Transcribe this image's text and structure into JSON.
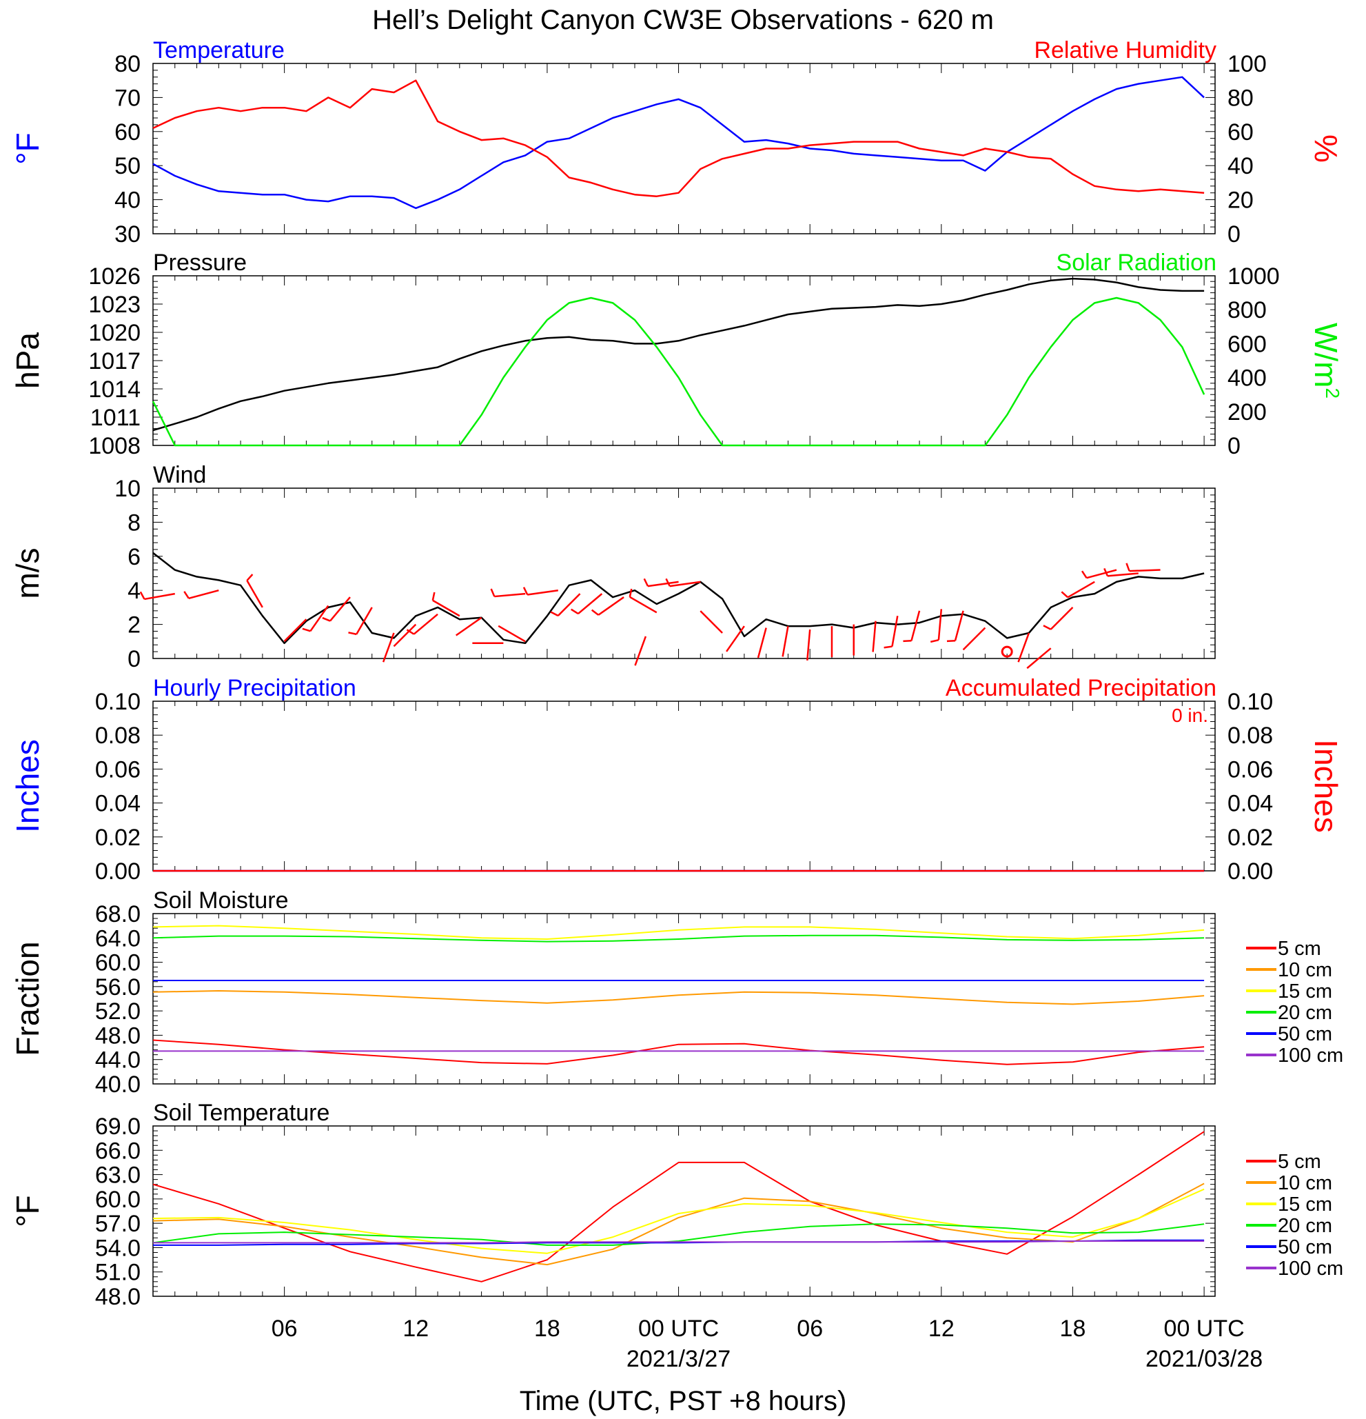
{
  "title": "Hell’s Delight Canyon CW3E Observations - 620 m",
  "x_axis": {
    "tick_labels": [
      "06",
      "12",
      "18",
      "00 UTC",
      "06",
      "12",
      "18",
      "00 UTC"
    ],
    "date_labels": [
      "2021/3/27",
      "2021/03/28"
    ],
    "title": "Time (UTC, PST +8 hours)"
  },
  "colors": {
    "temperature": "#0000ff",
    "humidity": "#ff0000",
    "pressure": "#000000",
    "solar": "#00ee00",
    "wind": "#000000",
    "barb": "#ff0000",
    "d5": "#ff0000",
    "d10": "#ff9900",
    "d15": "#ffff00",
    "d20": "#00ee00",
    "d50": "#0000ff",
    "d100": "#9933cc"
  },
  "chart_data": [
    {
      "type": "line",
      "panel": "temp_rh",
      "left_title": "Temperature",
      "right_title": "Relative Humidity",
      "ylabel": "°F",
      "ylabel_right": "%",
      "ylim": [
        30,
        80
      ],
      "ylim_right": [
        0,
        100
      ],
      "left_ticks": [
        "30",
        "40",
        "50",
        "60",
        "70",
        "80"
      ],
      "right_ticks": [
        "0",
        "20",
        "40",
        "60",
        "80",
        "100"
      ],
      "x_hours": [
        0,
        1,
        2,
        3,
        4,
        5,
        6,
        7,
        8,
        9,
        10,
        11,
        12,
        13,
        14,
        15,
        16,
        17,
        18,
        19,
        20,
        21,
        22,
        23,
        24,
        25,
        26,
        27,
        28,
        29,
        30,
        31,
        32,
        33,
        34,
        35,
        36,
        37,
        38,
        39,
        40,
        41,
        42,
        43,
        44,
        45,
        46,
        47,
        48
      ],
      "series": [
        {
          "name": "Temperature",
          "axis": "left",
          "color_key": "temperature",
          "values": [
            50.5,
            47,
            44.5,
            42.5,
            42,
            41.5,
            41.5,
            40,
            39.5,
            41,
            41,
            40.5,
            37.5,
            40,
            43,
            47,
            51,
            53,
            57,
            58,
            61,
            64,
            66,
            68,
            69.5,
            67,
            62,
            57,
            57.5,
            56.5,
            55,
            54.5,
            53.5,
            53,
            52.5,
            52,
            51.5,
            51.5,
            48.5,
            54,
            58,
            62,
            66,
            69.5,
            72.5,
            74,
            75,
            76,
            70
          ]
        },
        {
          "name": "Relative Humidity",
          "axis": "right",
          "color_key": "humidity",
          "values": [
            62,
            68,
            72,
            74,
            72,
            74,
            74,
            72,
            80,
            74,
            85,
            83,
            90,
            66,
            60,
            55,
            56,
            52,
            45,
            33,
            30,
            26,
            23,
            22,
            24,
            38,
            44,
            47,
            50,
            50,
            52,
            53,
            54,
            54,
            54,
            50,
            48,
            46,
            50,
            48,
            45,
            44,
            35,
            28,
            26,
            25,
            26,
            25,
            24
          ]
        }
      ]
    },
    {
      "type": "line",
      "panel": "pressure_solar",
      "left_title": "Pressure",
      "right_title": "Solar Radiation",
      "ylabel": "hPa",
      "ylabel_right": "W/m",
      "ylabel_right_sup": "2",
      "ylim": [
        1008,
        1026
      ],
      "ylim_right": [
        0,
        1000
      ],
      "left_ticks": [
        "1008",
        "1011",
        "1014",
        "1017",
        "1020",
        "1023",
        "1026"
      ],
      "right_ticks": [
        "0",
        "200",
        "400",
        "600",
        "800",
        "1000"
      ],
      "x_hours": [
        0,
        1,
        2,
        3,
        4,
        5,
        6,
        7,
        8,
        9,
        10,
        11,
        12,
        13,
        14,
        15,
        16,
        17,
        18,
        19,
        20,
        21,
        22,
        23,
        24,
        25,
        26,
        27,
        28,
        29,
        30,
        31,
        32,
        33,
        34,
        35,
        36,
        37,
        38,
        39,
        40,
        41,
        42,
        43,
        44,
        45,
        46,
        47,
        48
      ],
      "series": [
        {
          "name": "Pressure",
          "axis": "left",
          "color_key": "pressure",
          "values": [
            1009.6,
            1010.3,
            1011,
            1011.9,
            1012.7,
            1013.2,
            1013.8,
            1014.2,
            1014.6,
            1014.9,
            1015.2,
            1015.5,
            1015.9,
            1016.3,
            1017.2,
            1018,
            1018.6,
            1019.1,
            1019.4,
            1019.5,
            1019.2,
            1019.1,
            1018.8,
            1018.8,
            1019.1,
            1019.7,
            1020.2,
            1020.7,
            1021.3,
            1021.9,
            1022.2,
            1022.5,
            1022.6,
            1022.7,
            1022.9,
            1022.8,
            1023,
            1023.4,
            1024,
            1024.5,
            1025.1,
            1025.5,
            1025.7,
            1025.6,
            1025.3,
            1024.8,
            1024.5,
            1024.4,
            1024.4
          ]
        },
        {
          "name": "Solar Radiation",
          "axis": "right",
          "color_key": "solar",
          "values": [
            260,
            0,
            0,
            0,
            0,
            0,
            0,
            0,
            0,
            0,
            0,
            0,
            0,
            0,
            0,
            180,
            400,
            580,
            740,
            840,
            870,
            840,
            740,
            580,
            400,
            180,
            0,
            0,
            0,
            0,
            0,
            0,
            0,
            0,
            0,
            0,
            0,
            0,
            0,
            180,
            400,
            580,
            740,
            840,
            870,
            840,
            740,
            580,
            300
          ]
        }
      ]
    },
    {
      "type": "line",
      "panel": "wind",
      "left_title": "Wind",
      "ylabel": "m/s",
      "ylim": [
        0,
        10
      ],
      "left_ticks": [
        "0",
        "2",
        "4",
        "6",
        "8",
        "10"
      ],
      "x_hours": [
        0,
        1,
        2,
        3,
        4,
        5,
        6,
        7,
        8,
        9,
        10,
        11,
        12,
        13,
        14,
        15,
        16,
        17,
        18,
        19,
        20,
        21,
        22,
        23,
        24,
        25,
        26,
        27,
        28,
        29,
        30,
        31,
        32,
        33,
        34,
        35,
        36,
        37,
        38,
        39,
        40,
        41,
        42,
        43,
        44,
        45,
        46,
        47,
        48
      ],
      "series": [
        {
          "name": "Wind",
          "axis": "left",
          "color_key": "wind",
          "values": [
            6.2,
            5.2,
            4.8,
            4.6,
            4.3,
            2.5,
            0.9,
            2.2,
            3.0,
            3.3,
            1.5,
            1.2,
            2.5,
            3.0,
            2.3,
            2.4,
            1.1,
            0.9,
            2.5,
            4.3,
            4.6,
            3.6,
            4.0,
            3.2,
            3.8,
            4.5,
            3.5,
            1.3,
            2.3,
            1.9,
            1.9,
            2.0,
            1.8,
            2.1,
            2.0,
            2.1,
            2.5,
            2.6,
            2.2,
            1.2,
            1.5,
            3.0,
            3.6,
            3.8,
            4.5,
            4.8,
            4.7,
            4.7,
            5.0
          ]
        }
      ],
      "barbs": [
        {
          "hour": 1,
          "speed": 3.8,
          "dir": 260
        },
        {
          "hour": 3,
          "speed": 4.0,
          "dir": 255
        },
        {
          "hour": 5,
          "speed": 3.0,
          "dir": 330
        },
        {
          "hour": 7,
          "speed": 2.3,
          "dir": 225
        },
        {
          "hour": 8,
          "speed": 3.1,
          "dir": 215
        },
        {
          "hour": 9,
          "speed": 3.6,
          "dir": 220
        },
        {
          "hour": 10,
          "speed": 3.0,
          "dir": 210
        },
        {
          "hour": 11,
          "speed": 1.5,
          "dir": 200
        },
        {
          "hour": 12,
          "speed": 2.0,
          "dir": 225
        },
        {
          "hour": 13,
          "speed": 2.6,
          "dir": 230
        },
        {
          "hour": 14,
          "speed": 2.5,
          "dir": 300
        },
        {
          "hour": 15,
          "speed": 2.4,
          "dir": 235
        },
        {
          "hour": 16,
          "speed": 0.9,
          "dir": 270
        },
        {
          "hour": 17,
          "speed": 1.0,
          "dir": 300
        },
        {
          "hour": 17,
          "speed": 3.8,
          "dir": 265
        },
        {
          "hour": 18.5,
          "speed": 4.0,
          "dir": 262
        },
        {
          "hour": 19.5,
          "speed": 3.8,
          "dir": 225
        },
        {
          "hour": 20.5,
          "speed": 3.8,
          "dir": 230
        },
        {
          "hour": 21.5,
          "speed": 3.6,
          "dir": 235
        },
        {
          "hour": 22.5,
          "speed": 1.3,
          "dir": 200
        },
        {
          "hour": 23,
          "speed": 2.7,
          "dir": 300
        },
        {
          "hour": 24,
          "speed": 4.5,
          "dir": 262
        },
        {
          "hour": 25,
          "speed": 4.5,
          "dir": 262
        },
        {
          "hour": 26,
          "speed": 1.5,
          "dir": 315
        },
        {
          "hour": 27,
          "speed": 1.9,
          "dir": 215
        },
        {
          "hour": 28,
          "speed": 1.8,
          "dir": 195
        },
        {
          "hour": 29,
          "speed": 1.9,
          "dir": 190
        },
        {
          "hour": 30,
          "speed": 1.7,
          "dir": 185
        },
        {
          "hour": 31,
          "speed": 1.9,
          "dir": 180
        },
        {
          "hour": 32,
          "speed": 2.0,
          "dir": 180
        },
        {
          "hour": 33,
          "speed": 2.2,
          "dir": 185
        },
        {
          "hour": 34,
          "speed": 2.5,
          "dir": 190
        },
        {
          "hour": 35,
          "speed": 2.8,
          "dir": 195
        },
        {
          "hour": 36,
          "speed": 2.9,
          "dir": 185
        },
        {
          "hour": 37,
          "speed": 2.8,
          "dir": 195
        },
        {
          "hour": 38,
          "speed": 1.8,
          "dir": 225
        },
        {
          "hour": 39,
          "speed": 0.4,
          "dir": 0
        },
        {
          "hour": 40,
          "speed": 1.5,
          "dir": 200
        },
        {
          "hour": 41,
          "speed": 0.6,
          "dir": 230
        },
        {
          "hour": 42,
          "speed": 3.0,
          "dir": 225
        },
        {
          "hour": 43,
          "speed": 4.5,
          "dir": 240
        },
        {
          "hour": 44,
          "speed": 5.2,
          "dir": 255
        },
        {
          "hour": 45,
          "speed": 5.0,
          "dir": 265
        },
        {
          "hour": 46,
          "speed": 5.2,
          "dir": 268
        }
      ]
    },
    {
      "type": "line",
      "panel": "precip",
      "left_title": "Hourly Precipitation",
      "right_title": "Accumulated Precipitation",
      "accum_label": "0 in.",
      "ylabel": "Inches",
      "ylabel_right": "Inches",
      "ylim": [
        0,
        0.1
      ],
      "ylim_right": [
        0,
        0.1
      ],
      "left_ticks": [
        "0.00",
        "0.02",
        "0.04",
        "0.06",
        "0.08",
        "0.10"
      ],
      "right_ticks": [
        "0.00",
        "0.02",
        "0.04",
        "0.06",
        "0.08",
        "0.10"
      ],
      "x_hours": [
        0,
        48
      ],
      "series": [
        {
          "name": "Hourly Precipitation",
          "axis": "left",
          "color_key": "temperature",
          "values": [
            0,
            0
          ]
        },
        {
          "name": "Accumulated Precipitation",
          "axis": "right",
          "color_key": "humidity",
          "values": [
            0,
            0
          ]
        }
      ]
    },
    {
      "type": "line",
      "panel": "soil_moisture",
      "left_title": "Soil Moisture",
      "ylabel": "Fraction",
      "ylim": [
        40,
        68
      ],
      "left_ticks": [
        "40.0",
        "44.0",
        "48.0",
        "52.0",
        "56.0",
        "60.0",
        "64.0",
        "68.0"
      ],
      "x_hours": [
        0,
        3,
        6,
        9,
        12,
        15,
        18,
        21,
        24,
        27,
        30,
        33,
        36,
        39,
        42,
        45,
        48
      ],
      "series": [
        {
          "name": "5 cm",
          "color_key": "d5",
          "values": [
            47.2,
            46.5,
            45.6,
            44.9,
            44.2,
            43.5,
            43.3,
            44.7,
            46.5,
            46.6,
            45.5,
            44.8,
            43.9,
            43.2,
            43.6,
            45.2,
            46.1
          ]
        },
        {
          "name": "10 cm",
          "color_key": "d10",
          "values": [
            55.1,
            55.3,
            55.1,
            54.7,
            54.2,
            53.7,
            53.3,
            53.8,
            54.6,
            55.1,
            55.0,
            54.6,
            54.0,
            53.4,
            53.1,
            53.6,
            54.5
          ]
        },
        {
          "name": "15 cm",
          "color_key": "d15",
          "values": [
            65.8,
            66.0,
            65.6,
            65.1,
            64.6,
            64.0,
            63.8,
            64.5,
            65.3,
            65.8,
            65.8,
            65.4,
            64.8,
            64.2,
            63.9,
            64.4,
            65.3
          ]
        },
        {
          "name": "20 cm",
          "color_key": "d20",
          "values": [
            64.0,
            64.3,
            64.3,
            64.2,
            63.9,
            63.6,
            63.4,
            63.5,
            63.8,
            64.3,
            64.4,
            64.4,
            64.1,
            63.7,
            63.6,
            63.7,
            64.0
          ]
        },
        {
          "name": "50 cm",
          "color_key": "d50",
          "values": [
            57.0,
            57.0,
            57.0,
            57.0,
            57.0,
            57.0,
            57.0,
            57.0,
            57.0,
            57.0,
            57.0,
            57.0,
            57.0,
            57.0,
            57.0,
            57.0,
            57.0
          ]
        },
        {
          "name": "100 cm",
          "color_key": "d100",
          "values": [
            45.4,
            45.4,
            45.4,
            45.4,
            45.4,
            45.4,
            45.4,
            45.4,
            45.4,
            45.4,
            45.4,
            45.4,
            45.4,
            45.4,
            45.4,
            45.4,
            45.4
          ]
        }
      ]
    },
    {
      "type": "line",
      "panel": "soil_temperature",
      "left_title": "Soil Temperature",
      "ylabel": "°F",
      "ylim": [
        48,
        69
      ],
      "left_ticks": [
        "48.0",
        "51.0",
        "54.0",
        "57.0",
        "60.0",
        "63.0",
        "66.0",
        "69.0"
      ],
      "x_hours": [
        0,
        3,
        6,
        9,
        12,
        15,
        18,
        21,
        24,
        27,
        30,
        33,
        36,
        39,
        42,
        45,
        48
      ],
      "series": [
        {
          "name": "5 cm",
          "color_key": "d5",
          "values": [
            61.8,
            59.4,
            56.4,
            53.5,
            51.6,
            49.8,
            52.5,
            59.0,
            64.5,
            64.5,
            59.7,
            56.8,
            54.8,
            53.2,
            57.8,
            63.0,
            68.3
          ]
        },
        {
          "name": "10 cm",
          "color_key": "d10",
          "values": [
            57.3,
            57.5,
            56.6,
            55.3,
            54.1,
            52.8,
            51.9,
            53.8,
            57.7,
            60.1,
            59.7,
            58.2,
            56.4,
            55.2,
            54.7,
            57.6,
            61.9
          ]
        },
        {
          "name": "15 cm",
          "color_key": "d15",
          "values": [
            57.6,
            57.7,
            57.1,
            56.2,
            55.0,
            53.9,
            53.3,
            55.3,
            58.2,
            59.4,
            59.2,
            58.3,
            57.1,
            55.9,
            55.3,
            57.6,
            61.2
          ]
        },
        {
          "name": "20 cm",
          "color_key": "d20",
          "values": [
            54.6,
            55.7,
            55.9,
            55.6,
            55.3,
            55.0,
            54.3,
            54.3,
            54.8,
            55.9,
            56.6,
            56.9,
            56.8,
            56.4,
            55.8,
            55.9,
            56.9
          ]
        },
        {
          "name": "50 cm",
          "color_key": "d50",
          "values": [
            54.3,
            54.3,
            54.4,
            54.4,
            54.5,
            54.5,
            54.6,
            54.6,
            54.6,
            54.7,
            54.7,
            54.7,
            54.8,
            54.8,
            54.8,
            54.9,
            54.9
          ]
        },
        {
          "name": "100 cm",
          "color_key": "d100",
          "values": [
            54.6,
            54.6,
            54.6,
            54.6,
            54.6,
            54.6,
            54.7,
            54.7,
            54.7,
            54.7,
            54.7,
            54.7,
            54.7,
            54.7,
            54.8,
            54.8,
            54.8
          ]
        }
      ]
    }
  ]
}
